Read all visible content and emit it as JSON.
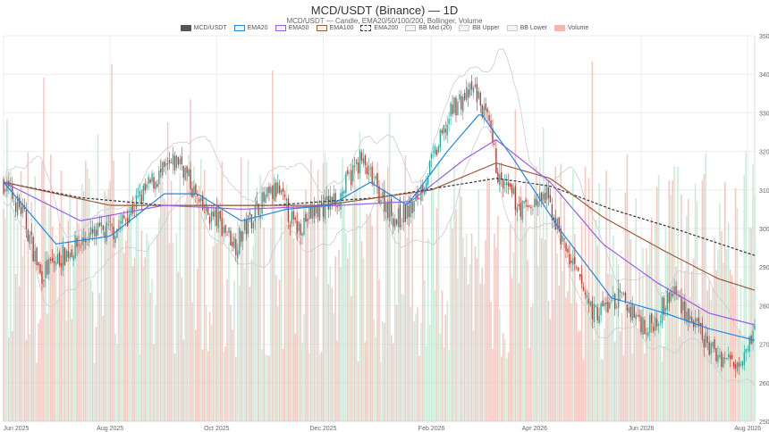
{
  "chart_data": {
    "type": "candlestick",
    "title": "MCD/USDT (Binance) — 1D",
    "subtitle": "MCD/USDT — Candle, EMA20/50/100/200, Bollinger, Volume",
    "legend": [
      {
        "label": "MCD/USDT",
        "color": "#555555",
        "style": "fill"
      },
      {
        "label": "EMA20",
        "color": "#1e88e5",
        "style": "line"
      },
      {
        "label": "EMA50",
        "color": "#9c5de8",
        "style": "line"
      },
      {
        "label": "EMA100",
        "color": "#9e5a3c",
        "style": "line"
      },
      {
        "label": "EMA200",
        "color": "#333333",
        "style": "dash"
      },
      {
        "label": "BB Mid (20)",
        "color": "#bbbbbb",
        "style": "line"
      },
      {
        "label": "BB Upper",
        "color": "#cccccc",
        "style": "line"
      },
      {
        "label": "BB Lower",
        "color": "#cccccc",
        "style": "line"
      },
      {
        "label": "Volume",
        "color": "#f4b6ae",
        "style": "fill"
      }
    ],
    "x_ticks": [
      "Jun 2025",
      "Aug 2025",
      "Oct 2025",
      "Dec 2025",
      "Feb 2026",
      "Apr 2026",
      "Jun 2026",
      "Aug 2026"
    ],
    "x_range": [
      "2025-06-01",
      "2026-08-05"
    ],
    "y_ticks": [
      250,
      260,
      270,
      280,
      290,
      300,
      310,
      320,
      330,
      340,
      350
    ],
    "ylim": [
      250,
      350
    ],
    "y_axis_side": "right",
    "grid": true,
    "colors": {
      "up": "#26a69a",
      "down": "#c0392b",
      "vol_up": "#b9e6cf",
      "vol_down": "#f4b6ae"
    },
    "close_anchors": [
      {
        "date": "2025-06-01",
        "close": 312
      },
      {
        "date": "2025-06-12",
        "close": 304
      },
      {
        "date": "2025-06-22",
        "close": 288
      },
      {
        "date": "2025-07-05",
        "close": 293
      },
      {
        "date": "2025-07-20",
        "close": 298
      },
      {
        "date": "2025-08-05",
        "close": 300
      },
      {
        "date": "2025-08-25",
        "close": 312
      },
      {
        "date": "2025-09-10",
        "close": 318
      },
      {
        "date": "2025-09-22",
        "close": 305
      },
      {
        "date": "2025-10-02",
        "close": 302
      },
      {
        "date": "2025-10-12",
        "close": 296
      },
      {
        "date": "2025-10-25",
        "close": 306
      },
      {
        "date": "2025-11-05",
        "close": 310
      },
      {
        "date": "2025-11-15",
        "close": 300
      },
      {
        "date": "2025-11-28",
        "close": 305
      },
      {
        "date": "2025-12-10",
        "close": 308
      },
      {
        "date": "2025-12-22",
        "close": 318
      },
      {
        "date": "2026-01-01",
        "close": 310
      },
      {
        "date": "2026-01-12",
        "close": 302
      },
      {
        "date": "2026-01-22",
        "close": 306
      },
      {
        "date": "2026-02-02",
        "close": 318
      },
      {
        "date": "2026-02-14",
        "close": 332
      },
      {
        "date": "2026-02-26",
        "close": 336
      },
      {
        "date": "2026-03-06",
        "close": 326
      },
      {
        "date": "2026-03-12",
        "close": 312
      },
      {
        "date": "2026-03-25",
        "close": 305
      },
      {
        "date": "2026-04-08",
        "close": 308
      },
      {
        "date": "2026-04-20",
        "close": 293
      },
      {
        "date": "2026-05-05",
        "close": 278
      },
      {
        "date": "2026-05-20",
        "close": 282
      },
      {
        "date": "2026-06-05",
        "close": 274
      },
      {
        "date": "2026-06-20",
        "close": 284
      },
      {
        "date": "2026-07-01",
        "close": 275
      },
      {
        "date": "2026-07-12",
        "close": 268
      },
      {
        "date": "2026-07-25",
        "close": 265
      },
      {
        "date": "2026-08-05",
        "close": 274
      }
    ],
    "ema20_anchors": [
      {
        "date": "2025-06-01",
        "value": 312
      },
      {
        "date": "2025-07-01",
        "value": 296
      },
      {
        "date": "2025-08-01",
        "value": 298
      },
      {
        "date": "2025-09-01",
        "value": 309
      },
      {
        "date": "2025-09-20",
        "value": 309
      },
      {
        "date": "2025-10-15",
        "value": 302
      },
      {
        "date": "2025-11-10",
        "value": 305
      },
      {
        "date": "2025-12-05",
        "value": 306
      },
      {
        "date": "2025-12-28",
        "value": 312
      },
      {
        "date": "2026-01-18",
        "value": 306
      },
      {
        "date": "2026-02-10",
        "value": 320
      },
      {
        "date": "2026-03-01",
        "value": 330
      },
      {
        "date": "2026-03-20",
        "value": 318
      },
      {
        "date": "2026-04-15",
        "value": 300
      },
      {
        "date": "2026-05-15",
        "value": 282
      },
      {
        "date": "2026-06-15",
        "value": 278
      },
      {
        "date": "2026-07-10",
        "value": 274
      },
      {
        "date": "2026-08-05",
        "value": 271
      }
    ],
    "ema50_anchors": [
      {
        "date": "2025-06-01",
        "value": 312
      },
      {
        "date": "2025-07-15",
        "value": 302
      },
      {
        "date": "2025-09-01",
        "value": 306
      },
      {
        "date": "2025-10-15",
        "value": 305
      },
      {
        "date": "2025-12-10",
        "value": 306
      },
      {
        "date": "2026-01-20",
        "value": 307
      },
      {
        "date": "2026-02-20",
        "value": 318
      },
      {
        "date": "2026-03-10",
        "value": 323
      },
      {
        "date": "2026-04-10",
        "value": 312
      },
      {
        "date": "2026-05-10",
        "value": 296
      },
      {
        "date": "2026-06-10",
        "value": 286
      },
      {
        "date": "2026-07-10",
        "value": 278
      },
      {
        "date": "2026-08-05",
        "value": 275
      }
    ],
    "ema100_anchors": [
      {
        "date": "2025-06-01",
        "value": 312
      },
      {
        "date": "2025-08-01",
        "value": 306
      },
      {
        "date": "2025-10-01",
        "value": 306
      },
      {
        "date": "2025-12-01",
        "value": 306
      },
      {
        "date": "2026-02-01",
        "value": 310
      },
      {
        "date": "2026-03-10",
        "value": 317
      },
      {
        "date": "2026-04-10",
        "value": 313
      },
      {
        "date": "2026-05-10",
        "value": 303
      },
      {
        "date": "2026-06-15",
        "value": 294
      },
      {
        "date": "2026-07-15",
        "value": 287
      },
      {
        "date": "2026-08-05",
        "value": 284
      }
    ],
    "ema200_anchors": [
      {
        "date": "2025-06-01",
        "value": 312
      },
      {
        "date": "2025-07-15",
        "value": 308
      },
      {
        "date": "2025-09-01",
        "value": 306
      },
      {
        "date": "2025-11-01",
        "value": 306
      },
      {
        "date": "2026-01-01",
        "value": 308
      },
      {
        "date": "2026-03-10",
        "value": 313
      },
      {
        "date": "2026-04-10",
        "value": 311
      },
      {
        "date": "2026-05-15",
        "value": 305
      },
      {
        "date": "2026-06-20",
        "value": 300
      },
      {
        "date": "2026-08-05",
        "value": 293
      }
    ]
  }
}
